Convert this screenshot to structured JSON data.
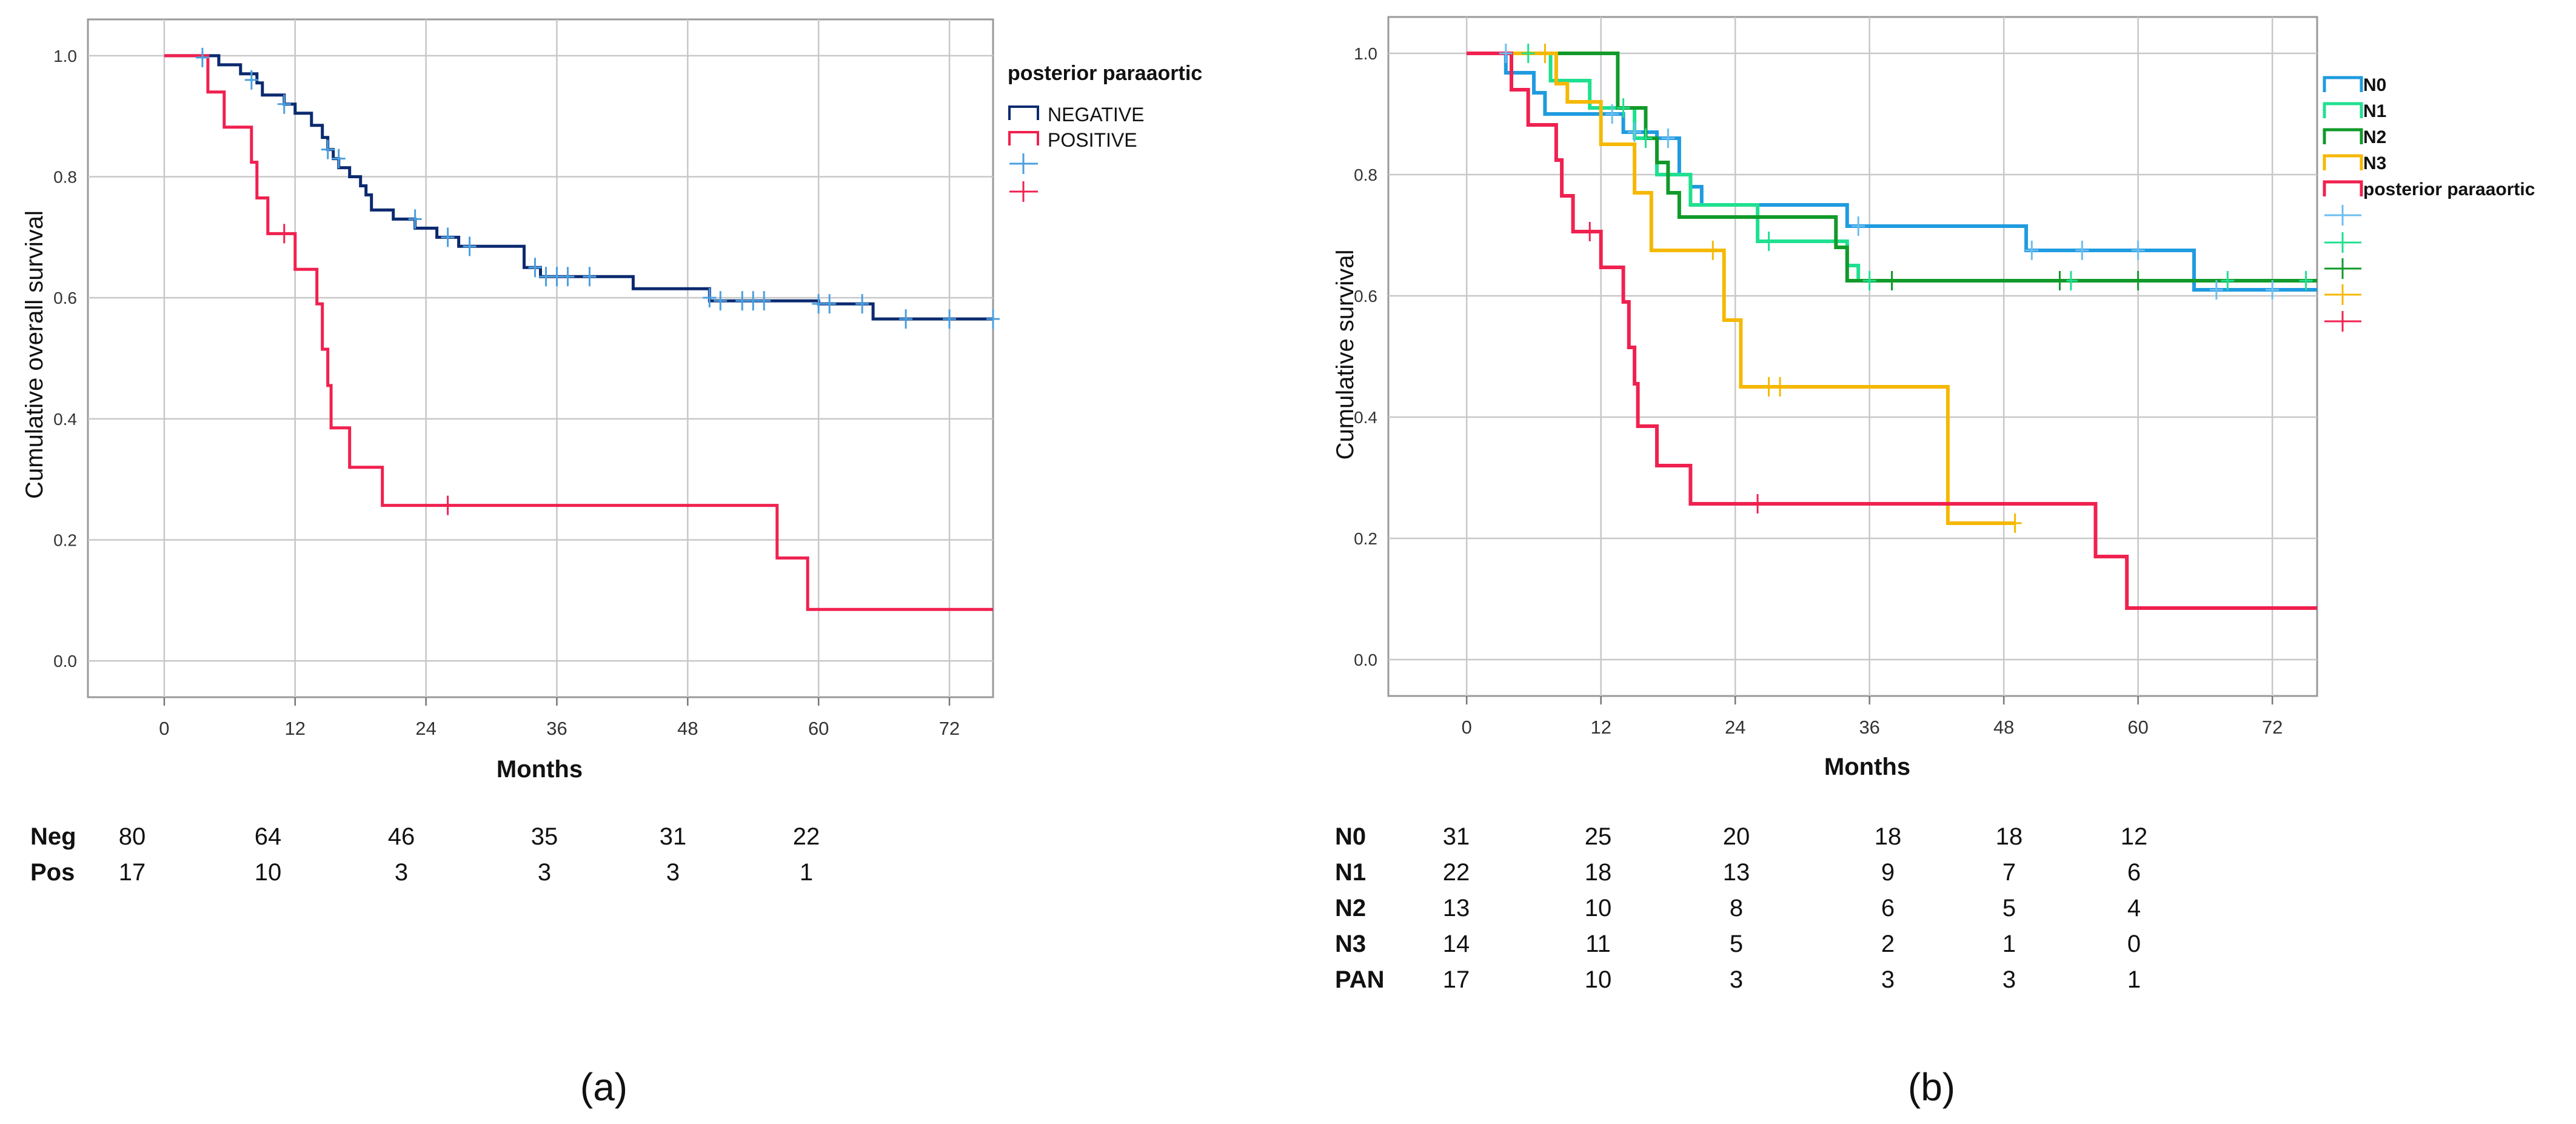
{
  "chart_data": [
    {
      "type": "line",
      "panel_label": "(a)",
      "title": "",
      "xlabel": "Months",
      "ylabel": "Cumulative overall survival",
      "xlim": [
        -7,
        76
      ],
      "ylim": [
        -0.06,
        1.06
      ],
      "xticks": [
        "0",
        "12",
        "24",
        "36",
        "48",
        "60",
        "72"
      ],
      "yticks": [
        "0.0",
        "0.2",
        "0.4",
        "0.6",
        "0.8",
        "1.0"
      ],
      "grid": true,
      "legend_position": "top-right",
      "legend_title": "posterior paraaortic",
      "legend": [
        "NEGATIVE",
        "POSITIVE",
        "",
        ""
      ],
      "series": [
        {
          "name": "NEGATIVE",
          "color": "#0b2a6f",
          "censor_color": "#4a9fe0",
          "steps": [
            [
              0,
              1.0
            ],
            [
              5,
              0.985
            ],
            [
              7,
              0.97
            ],
            [
              8.5,
              0.955
            ],
            [
              9,
              0.935
            ],
            [
              11,
              0.92
            ],
            [
              12,
              0.905
            ],
            [
              13.5,
              0.885
            ],
            [
              14.5,
              0.865
            ],
            [
              15,
              0.845
            ],
            [
              15.5,
              0.83
            ],
            [
              16,
              0.815
            ],
            [
              17,
              0.8
            ],
            [
              18,
              0.785
            ],
            [
              18.5,
              0.77
            ],
            [
              19,
              0.745
            ],
            [
              21,
              0.73
            ],
            [
              23,
              0.715
            ],
            [
              25,
              0.7
            ],
            [
              27,
              0.685
            ],
            [
              33,
              0.65
            ],
            [
              34.5,
              0.635
            ],
            [
              43,
              0.615
            ],
            [
              50,
              0.595
            ],
            [
              60,
              0.59
            ],
            [
              65,
              0.565
            ],
            [
              76,
              0.565
            ]
          ],
          "censored": [
            [
              3.5,
              0.997
            ],
            [
              8,
              0.96
            ],
            [
              11,
              0.92
            ],
            [
              15,
              0.845
            ],
            [
              16,
              0.83
            ],
            [
              23,
              0.73
            ],
            [
              26,
              0.7
            ],
            [
              28,
              0.685
            ],
            [
              34,
              0.65
            ],
            [
              35,
              0.635
            ],
            [
              36,
              0.635
            ],
            [
              37,
              0.635
            ],
            [
              39,
              0.635
            ],
            [
              50,
              0.6
            ],
            [
              51,
              0.595
            ],
            [
              53,
              0.595
            ],
            [
              54,
              0.595
            ],
            [
              55,
              0.595
            ],
            [
              60,
              0.59
            ],
            [
              61,
              0.59
            ],
            [
              64,
              0.59
            ],
            [
              68,
              0.565
            ],
            [
              72,
              0.565
            ],
            [
              76,
              0.565
            ]
          ]
        },
        {
          "name": "POSITIVE",
          "color": "#f0214f",
          "censor_color": "#f0214f",
          "steps": [
            [
              0,
              1.0
            ],
            [
              4,
              0.94
            ],
            [
              5.5,
              0.882
            ],
            [
              8,
              0.824
            ],
            [
              8.5,
              0.765
            ],
            [
              9.5,
              0.706
            ],
            [
              12,
              0.647
            ],
            [
              14,
              0.59
            ],
            [
              14.5,
              0.515
            ],
            [
              15,
              0.455
            ],
            [
              15.3,
              0.385
            ],
            [
              17,
              0.32
            ],
            [
              20,
              0.257
            ],
            [
              56,
              0.257
            ],
            [
              56.2,
              0.17
            ],
            [
              59,
              0.085
            ],
            [
              76,
              0.085
            ]
          ],
          "censored": [
            [
              11,
              0.706
            ],
            [
              26,
              0.257
            ]
          ]
        }
      ],
      "risk_table": {
        "rows": [
          {
            "label": "Neg",
            "values": [
              "80",
              "64",
              "46",
              "35",
              "31",
              "22"
            ]
          },
          {
            "label": "Pos",
            "values": [
              "17",
              "10",
              "3",
              "3",
              "3",
              "1"
            ]
          }
        ]
      }
    },
    {
      "type": "line",
      "panel_label": "(b)",
      "title": "",
      "xlabel": "Months",
      "ylabel": "Cumulative survival",
      "xlim": [
        -7,
        76
      ],
      "ylim": [
        -0.06,
        1.06
      ],
      "xticks": [
        "0",
        "12",
        "24",
        "36",
        "48",
        "60",
        "72"
      ],
      "yticks": [
        "0.0",
        "0.2",
        "0.4",
        "0.6",
        "0.8",
        "1.0"
      ],
      "grid": true,
      "legend_position": "top-right",
      "legend": [
        "N0",
        "N1",
        "N2",
        "N3",
        "posterior paraaortic",
        "",
        "",
        "",
        "",
        ""
      ],
      "series": [
        {
          "name": "N0",
          "color": "#1f9be0",
          "censor_color": "#6bbdf0",
          "steps": [
            [
              0,
              1.0
            ],
            [
              3.5,
              0.968
            ],
            [
              6,
              0.935
            ],
            [
              7,
              0.9
            ],
            [
              14,
              0.87
            ],
            [
              17,
              0.86
            ],
            [
              19,
              0.8
            ],
            [
              20,
              0.78
            ],
            [
              21,
              0.75
            ],
            [
              34,
              0.715
            ],
            [
              50,
              0.675
            ],
            [
              65,
              0.61
            ],
            [
              76,
              0.61
            ]
          ],
          "censored": [
            [
              3.5,
              1.0
            ],
            [
              13,
              0.9
            ],
            [
              15,
              0.87
            ],
            [
              18,
              0.86
            ],
            [
              35,
              0.715
            ],
            [
              50.5,
              0.675
            ],
            [
              55,
              0.675
            ],
            [
              60,
              0.675
            ],
            [
              67,
              0.61
            ],
            [
              72,
              0.61
            ]
          ]
        },
        {
          "name": "N1",
          "color": "#1fe090",
          "censor_color": "#1fe090",
          "steps": [
            [
              0,
              1.0
            ],
            [
              7.5,
              0.955
            ],
            [
              11,
              0.91
            ],
            [
              15,
              0.86
            ],
            [
              17,
              0.8
            ],
            [
              20,
              0.75
            ],
            [
              26,
              0.69
            ],
            [
              33,
              0.69
            ],
            [
              34,
              0.65
            ],
            [
              35,
              0.625
            ],
            [
              76,
              0.625
            ]
          ],
          "censored": [
            [
              5.5,
              1.0
            ],
            [
              14,
              0.91
            ],
            [
              16,
              0.86
            ],
            [
              27,
              0.69
            ],
            [
              36,
              0.625
            ],
            [
              38,
              0.625
            ],
            [
              54,
              0.625
            ],
            [
              68,
              0.625
            ],
            [
              75,
              0.625
            ]
          ]
        },
        {
          "name": "N2",
          "color": "#119a2a",
          "censor_color": "#119a2a",
          "steps": [
            [
              0,
              1.0
            ],
            [
              13.5,
              0.91
            ],
            [
              16,
              0.86
            ],
            [
              17,
              0.82
            ],
            [
              18,
              0.77
            ],
            [
              19,
              0.73
            ],
            [
              33,
              0.68
            ],
            [
              34,
              0.625
            ],
            [
              76,
              0.625
            ]
          ],
          "censored": [
            [
              38,
              0.625
            ],
            [
              53,
              0.625
            ],
            [
              60,
              0.625
            ]
          ]
        },
        {
          "name": "N3",
          "color": "#f5b800",
          "censor_color": "#f5b800",
          "steps": [
            [
              0,
              1.0
            ],
            [
              8,
              0.95
            ],
            [
              9,
              0.92
            ],
            [
              12,
              0.85
            ],
            [
              14.5,
              0.85
            ],
            [
              15,
              0.77
            ],
            [
              16.5,
              0.675
            ],
            [
              23,
              0.56
            ],
            [
              24.5,
              0.45
            ],
            [
              43,
              0.225
            ],
            [
              49,
              0.225
            ]
          ],
          "censored": [
            [
              7,
              1.0
            ],
            [
              22,
              0.675
            ],
            [
              27,
              0.45
            ],
            [
              28,
              0.45
            ],
            [
              49,
              0.225
            ]
          ]
        },
        {
          "name": "posterior paraaortic",
          "color": "#f0214f",
          "censor_color": "#f0214f",
          "steps": [
            [
              0,
              1.0
            ],
            [
              4,
              0.94
            ],
            [
              5.5,
              0.882
            ],
            [
              8,
              0.824
            ],
            [
              8.5,
              0.765
            ],
            [
              9.5,
              0.706
            ],
            [
              12,
              0.647
            ],
            [
              14,
              0.59
            ],
            [
              14.5,
              0.515
            ],
            [
              15,
              0.455
            ],
            [
              15.3,
              0.385
            ],
            [
              17,
              0.32
            ],
            [
              20,
              0.257
            ],
            [
              56,
              0.257
            ],
            [
              56.2,
              0.17
            ],
            [
              59,
              0.085
            ],
            [
              76,
              0.085
            ]
          ],
          "censored": [
            [
              11,
              0.706
            ],
            [
              26,
              0.257
            ]
          ]
        }
      ],
      "risk_table": {
        "rows": [
          {
            "label": "N0",
            "values": [
              "31",
              "25",
              "20",
              "18",
              "18",
              "12"
            ]
          },
          {
            "label": "N1",
            "values": [
              "22",
              "18",
              "13",
              "9",
              "7",
              "6"
            ]
          },
          {
            "label": "N2",
            "values": [
              "13",
              "10",
              "8",
              "6",
              "5",
              "4"
            ]
          },
          {
            "label": "N3",
            "values": [
              "14",
              "11",
              "5",
              "2",
              "1",
              "0"
            ]
          },
          {
            "label": "PAN",
            "values": [
              "17",
              "10",
              "3",
              "3",
              "3",
              "1"
            ]
          }
        ]
      }
    }
  ]
}
